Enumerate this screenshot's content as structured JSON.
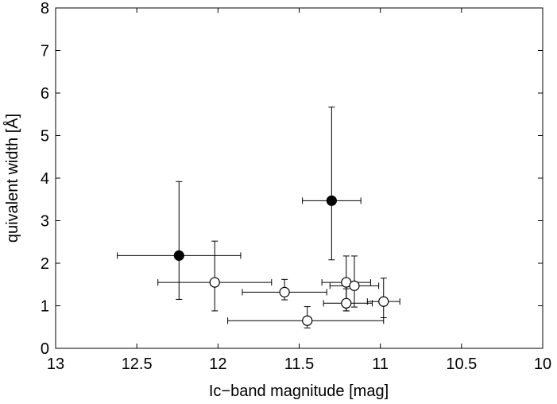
{
  "chart_data": {
    "type": "scatter",
    "title": "",
    "xlabel": "Ic−band magnitude [mag]",
    "ylabel": "quivalent width [Å]",
    "xlim": [
      13,
      10
    ],
    "ylim": [
      0,
      8
    ],
    "x_reversed": true,
    "x_ticks": [
      13,
      12.5,
      12,
      11.5,
      11,
      10.5,
      10
    ],
    "x_tick_labels": [
      "13",
      "12.5",
      "12",
      "11.5",
      "11",
      "10.5",
      "10"
    ],
    "y_ticks": [
      0,
      1,
      2,
      3,
      4,
      5,
      6,
      7,
      8
    ],
    "y_tick_labels": [
      "0",
      "1",
      "2",
      "3",
      "4",
      "5",
      "6",
      "7",
      "8"
    ],
    "grid": false,
    "series": [
      {
        "marker": "filled-circle",
        "color": "#000000",
        "points": [
          {
            "x": 12.24,
            "y": 2.18,
            "xlo": 12.62,
            "xhi": 11.86,
            "ylo": 1.15,
            "yhi": 3.92
          },
          {
            "x": 11.3,
            "y": 3.47,
            "xlo": 11.48,
            "xhi": 11.12,
            "ylo": 2.08,
            "yhi": 5.67
          }
        ]
      },
      {
        "marker": "open-circle",
        "color": "#000000",
        "points": [
          {
            "x": 12.02,
            "y": 1.55,
            "xlo": 12.37,
            "xhi": 11.67,
            "ylo": 0.88,
            "yhi": 2.52
          },
          {
            "x": 11.59,
            "y": 1.32,
            "xlo": 11.85,
            "xhi": 11.33,
            "ylo": 1.14,
            "yhi": 1.62
          },
          {
            "x": 11.45,
            "y": 0.65,
            "xlo": 11.94,
            "xhi": 10.98,
            "ylo": 0.48,
            "yhi": 0.98
          },
          {
            "x": 11.21,
            "y": 1.55,
            "xlo": 11.36,
            "xhi": 11.06,
            "ylo": 0.88,
            "yhi": 2.17
          },
          {
            "x": 11.16,
            "y": 1.47,
            "xlo": 11.31,
            "xhi": 11.01,
            "ylo": 0.97,
            "yhi": 2.17
          },
          {
            "x": 11.21,
            "y": 1.06,
            "xlo": 11.35,
            "xhi": 11.05,
            "ylo": 0.88,
            "yhi": 1.4
          },
          {
            "x": 10.98,
            "y": 1.1,
            "xlo": 11.08,
            "xhi": 10.88,
            "ylo": 0.72,
            "yhi": 1.65
          }
        ]
      }
    ]
  }
}
